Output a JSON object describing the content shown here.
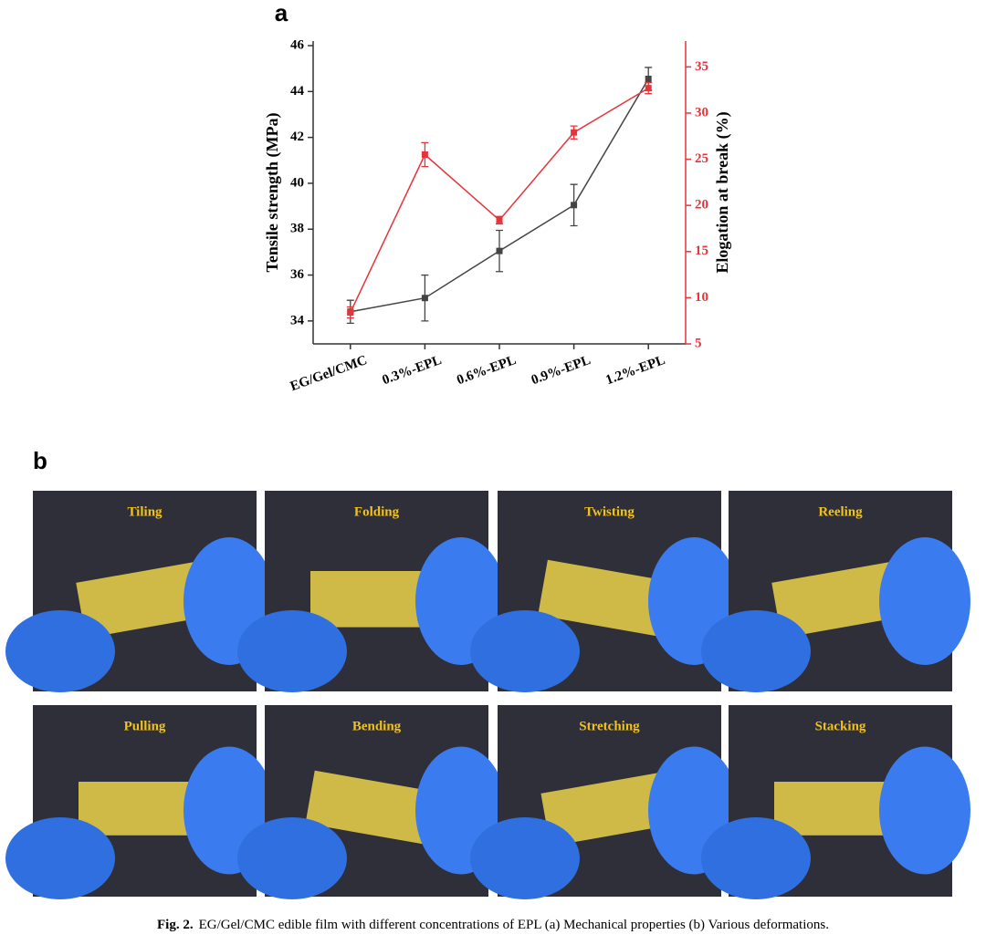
{
  "panel_labels": [
    "a",
    "b"
  ],
  "chart_data": {
    "type": "line",
    "categories": [
      "EG/Gel/CMC",
      "0.3%-EPL",
      "0.6%-EPL",
      "0.9%-EPL",
      "1.2%-EPL"
    ],
    "y_label": "Tensile strength (MPa)",
    "y2_label": "Elogation at break (%)",
    "ylim": [
      33,
      46.2
    ],
    "yticks": [
      34,
      36,
      38,
      40,
      42,
      44,
      46
    ],
    "y2lim": [
      5,
      37.8
    ],
    "y2ticks": [
      5,
      10,
      15,
      20,
      25,
      30,
      35
    ],
    "series": [
      {
        "name": "Tensile strength",
        "color": "#444444",
        "values": [
          34.4,
          35.0,
          37.05,
          39.05,
          44.55
        ],
        "errors": [
          0.5,
          1.0,
          0.9,
          0.9,
          0.5
        ]
      },
      {
        "name": "Elogation at break",
        "color": "#e8333a",
        "axis": "y2",
        "values": [
          8.4,
          25.5,
          18.4,
          27.9,
          32.7
        ],
        "errors": [
          0.6,
          1.3,
          0.4,
          0.7,
          0.6
        ]
      }
    ]
  },
  "photos": [
    "Tiling",
    "Folding",
    "Twisting",
    "Reeling",
    "Pulling",
    "Bending",
    "Stretching",
    "Stacking"
  ],
  "caption": {
    "label": "Fig. 2.",
    "text": "EG/Gel/CMC edible film with different concentrations of EPL (a) Mechanical properties (b) Various deformations."
  }
}
